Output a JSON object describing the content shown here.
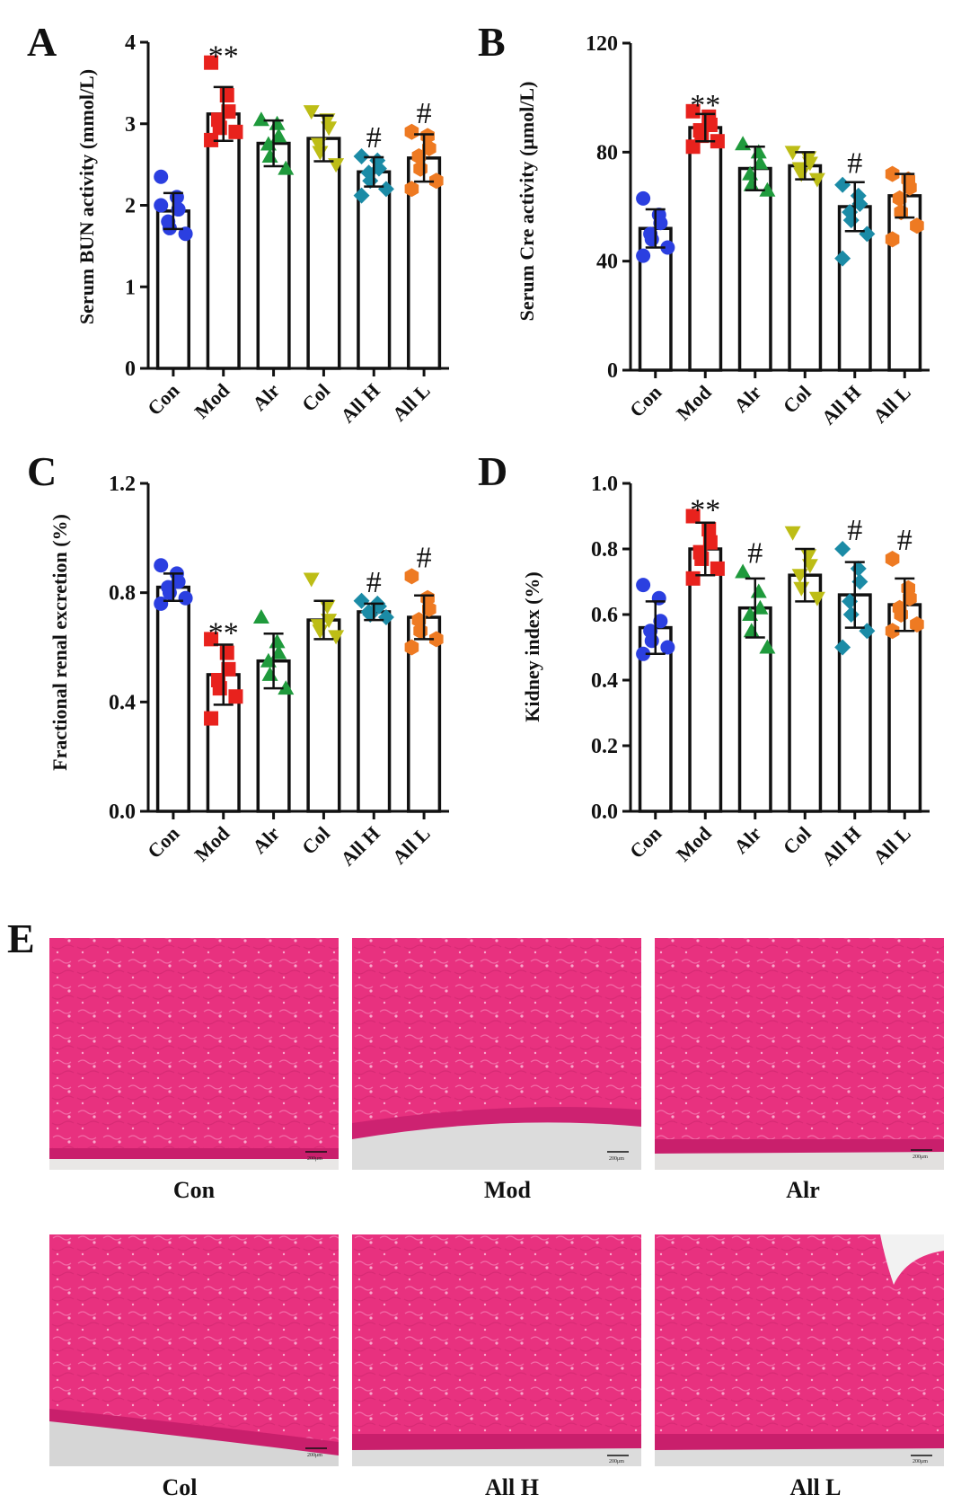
{
  "figure": {
    "panel_e_letter": "E"
  },
  "chart_data": [
    {
      "id": "A",
      "letter": "A",
      "type": "bar",
      "ylabel": "Serum BUN activity (mmol/L)",
      "ylim": [
        0,
        4
      ],
      "yticks": [
        "0",
        "1",
        "2",
        "3",
        "4"
      ],
      "categories": [
        "Con",
        "Mod",
        "Alr",
        "Col",
        "All H",
        "All L"
      ],
      "values": [
        1.93,
        3.12,
        2.76,
        2.82,
        2.41,
        2.58
      ],
      "errors": [
        0.22,
        0.33,
        0.28,
        0.28,
        0.18,
        0.29
      ],
      "markers": [
        "circle",
        "square",
        "triangle-up",
        "triangle-down",
        "diamond",
        "hexagon"
      ],
      "colors": [
        "#2b3fe0",
        "#e8221d",
        "#1f9a3c",
        "#bdbd16",
        "#1b8ba6",
        "#ee7a22"
      ],
      "points": [
        [
          2.35,
          2.1,
          1.95,
          1.8,
          1.72,
          1.65,
          2.0
        ],
        [
          3.75,
          3.35,
          3.15,
          3.05,
          2.95,
          2.9,
          2.8
        ],
        [
          3.05,
          3.0,
          2.85,
          2.75,
          2.6,
          2.45
        ],
        [
          3.15,
          3.05,
          2.95,
          2.75,
          2.65,
          2.5
        ],
        [
          2.6,
          2.55,
          2.45,
          2.4,
          2.3,
          2.2,
          2.12
        ],
        [
          2.9,
          2.85,
          2.7,
          2.6,
          2.45,
          2.3,
          2.2
        ]
      ],
      "significance": [
        "",
        "**",
        "",
        "",
        "#",
        "#"
      ]
    },
    {
      "id": "B",
      "letter": "B",
      "type": "bar",
      "ylabel": "Serum Cre activity (μmol/L)",
      "ylim": [
        0,
        120
      ],
      "yticks": [
        "0",
        "40",
        "80",
        "120"
      ],
      "categories": [
        "Con",
        "Mod",
        "Alr",
        "Col",
        "All H",
        "All L"
      ],
      "values": [
        52,
        89,
        74,
        75,
        60,
        64
      ],
      "errors": [
        7,
        5,
        8,
        5,
        9,
        8
      ],
      "markers": [
        "circle",
        "square",
        "triangle-up",
        "triangle-down",
        "diamond",
        "hexagon"
      ],
      "colors": [
        "#2b3fe0",
        "#e8221d",
        "#1f9a3c",
        "#bdbd16",
        "#1b8ba6",
        "#ee7a22"
      ],
      "points": [
        [
          63,
          57,
          54,
          50,
          48,
          45,
          42
        ],
        [
          95,
          93,
          90,
          88,
          86,
          84,
          82
        ],
        [
          83,
          80,
          76,
          72,
          68,
          66
        ],
        [
          80,
          78,
          76,
          74,
          72,
          70
        ],
        [
          68,
          64,
          61,
          58,
          55,
          50,
          41
        ],
        [
          72,
          70,
          67,
          63,
          58,
          53,
          48
        ]
      ],
      "significance": [
        "",
        "**",
        "",
        "",
        "#",
        ""
      ]
    },
    {
      "id": "C",
      "letter": "C",
      "type": "bar",
      "ylabel": "Fractional renal excretion (%)",
      "ylim": [
        0,
        1.2
      ],
      "yticks": [
        "0.0",
        "0.4",
        "0.8",
        "1.2"
      ],
      "categories": [
        "Con",
        "Mod",
        "Alr",
        "Col",
        "All H",
        "All L"
      ],
      "values": [
        0.82,
        0.5,
        0.55,
        0.7,
        0.73,
        0.71
      ],
      "errors": [
        0.05,
        0.11,
        0.1,
        0.07,
        0.03,
        0.08
      ],
      "markers": [
        "circle",
        "square",
        "triangle-up",
        "triangle-down",
        "diamond",
        "hexagon"
      ],
      "colors": [
        "#2b3fe0",
        "#e8221d",
        "#1f9a3c",
        "#bdbd16",
        "#1b8ba6",
        "#ee7a22"
      ],
      "points": [
        [
          0.9,
          0.87,
          0.84,
          0.82,
          0.8,
          0.78,
          0.76
        ],
        [
          0.63,
          0.58,
          0.52,
          0.48,
          0.45,
          0.42,
          0.34
        ],
        [
          0.71,
          0.62,
          0.58,
          0.55,
          0.5,
          0.45
        ],
        [
          0.85,
          0.75,
          0.7,
          0.68,
          0.66,
          0.64
        ],
        [
          0.77,
          0.76,
          0.75,
          0.73,
          0.72,
          0.71
        ],
        [
          0.86,
          0.78,
          0.74,
          0.7,
          0.66,
          0.63,
          0.6
        ]
      ],
      "significance": [
        "",
        "**",
        "",
        "",
        "#",
        "#"
      ]
    },
    {
      "id": "D",
      "letter": "D",
      "type": "bar",
      "ylabel": "Kidney index (%)",
      "ylim": [
        0,
        1.0
      ],
      "yticks": [
        "0.0",
        "0.2",
        "0.4",
        "0.6",
        "0.8",
        "1.0"
      ],
      "categories": [
        "Con",
        "Mod",
        "Alr",
        "Col",
        "All H",
        "All L"
      ],
      "values": [
        0.56,
        0.8,
        0.62,
        0.72,
        0.66,
        0.63
      ],
      "errors": [
        0.08,
        0.08,
        0.09,
        0.08,
        0.1,
        0.08
      ],
      "markers": [
        "circle",
        "square",
        "triangle-up",
        "triangle-down",
        "diamond",
        "hexagon"
      ],
      "colors": [
        "#2b3fe0",
        "#e8221d",
        "#1f9a3c",
        "#bdbd16",
        "#1b8ba6",
        "#ee7a22"
      ],
      "points": [
        [
          0.69,
          0.65,
          0.58,
          0.55,
          0.52,
          0.5,
          0.48
        ],
        [
          0.9,
          0.86,
          0.82,
          0.79,
          0.77,
          0.74,
          0.71
        ],
        [
          0.73,
          0.67,
          0.62,
          0.6,
          0.55,
          0.5
        ],
        [
          0.85,
          0.78,
          0.75,
          0.72,
          0.68,
          0.65
        ],
        [
          0.8,
          0.74,
          0.7,
          0.64,
          0.6,
          0.55,
          0.5
        ],
        [
          0.77,
          0.68,
          0.65,
          0.62,
          0.6,
          0.57,
          0.55
        ]
      ],
      "significance": [
        "",
        "**",
        "#",
        "",
        "#",
        "#"
      ]
    }
  ],
  "histology": {
    "scale_bar_label": "200μm",
    "tissue_color": "#e8317f",
    "panels": [
      {
        "caption": "Con"
      },
      {
        "caption": "Mod"
      },
      {
        "caption": "Alr"
      },
      {
        "caption": "Col"
      },
      {
        "caption": "All H"
      },
      {
        "caption": "All L"
      }
    ]
  }
}
